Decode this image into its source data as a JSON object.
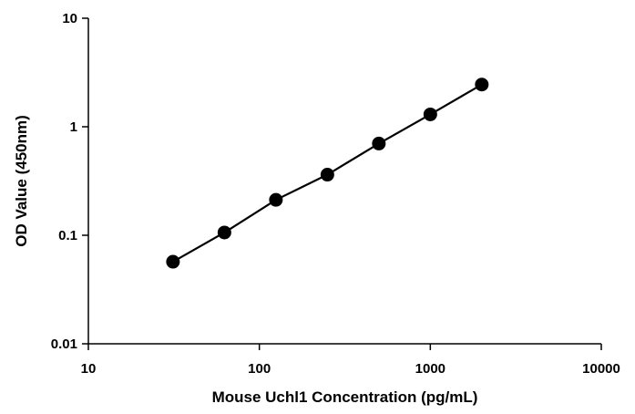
{
  "chart_data": {
    "type": "scatter",
    "title": "",
    "xlabel": "Mouse Uchl1 Concentration (pg/mL)",
    "ylabel": "OD Value (450nm)",
    "x_scale": "log",
    "y_scale": "log",
    "xlim": [
      10,
      10000
    ],
    "ylim": [
      0.01,
      10
    ],
    "x_ticks": [
      "10",
      "100",
      "1000",
      "10000"
    ],
    "y_ticks": [
      "0.01",
      "0.1",
      "1",
      "10"
    ],
    "grid": false,
    "legend": "none",
    "series": [
      {
        "x": [
          31.25,
          62.5,
          125,
          250,
          500,
          1000,
          2000
        ],
        "y": [
          0.057,
          0.106,
          0.212,
          0.362,
          0.7,
          1.3,
          2.45
        ]
      }
    ],
    "colors": {
      "marker": "#000000",
      "line": "#000000",
      "axis": "#000000"
    }
  }
}
